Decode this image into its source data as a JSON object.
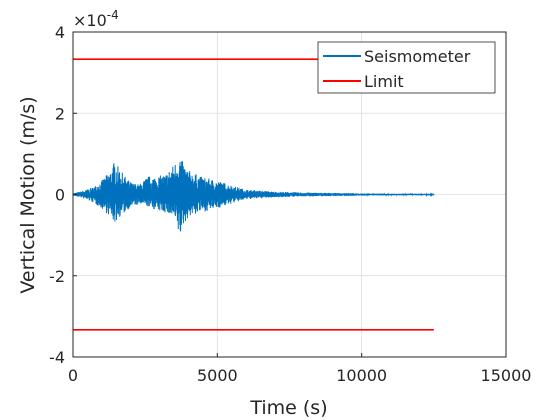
{
  "chart_data": {
    "type": "line",
    "title": "",
    "xlabel": "Time (s)",
    "ylabel": "Vertical Motion (m/s)",
    "xlim": [
      0,
      15000
    ],
    "ylim": [
      -4,
      4
    ],
    "y_exponent_label": "×10",
    "y_exponent_power": "-4",
    "x_ticks": [
      0,
      5000,
      10000,
      15000
    ],
    "x_tick_labels": [
      "0",
      "5000",
      "10000",
      "15000"
    ],
    "y_ticks": [
      -4,
      -2,
      0,
      2,
      4
    ],
    "y_tick_labels": [
      "-4",
      "-2",
      "0",
      "2",
      "4"
    ],
    "grid": true,
    "legend_position": "top-right",
    "series": [
      {
        "name": "Seismometer",
        "color": "#0072bd",
        "envelope": {
          "x": [
            0,
            300,
            700,
            1000,
            1300,
            1450,
            1550,
            1800,
            2000,
            2300,
            2600,
            2900,
            3200,
            3500,
            3700,
            3800,
            4000,
            4400,
            4800,
            5200,
            5600,
            6000,
            7000,
            8000,
            9000,
            10000,
            11000,
            12500
          ],
          "upper": [
            0.03,
            0.08,
            0.18,
            0.35,
            0.6,
            0.85,
            0.7,
            0.45,
            0.3,
            0.25,
            0.45,
            0.45,
            0.5,
            0.75,
            1.0,
            0.8,
            0.6,
            0.45,
            0.38,
            0.3,
            0.2,
            0.12,
            0.07,
            0.05,
            0.04,
            0.03,
            0.02,
            0.02
          ],
          "lower": [
            -0.03,
            -0.08,
            -0.2,
            -0.35,
            -0.55,
            -0.72,
            -0.6,
            -0.45,
            -0.3,
            -0.25,
            -0.3,
            -0.4,
            -0.45,
            -0.6,
            -1.1,
            -0.8,
            -0.55,
            -0.45,
            -0.38,
            -0.3,
            -0.2,
            -0.12,
            -0.07,
            -0.05,
            -0.04,
            -0.03,
            -0.02,
            -0.02
          ]
        }
      },
      {
        "name": "Limit",
        "color": "#ff0000",
        "x": [
          0,
          12500
        ],
        "upper_value": 3.33,
        "lower_value": -3.33
      }
    ]
  }
}
